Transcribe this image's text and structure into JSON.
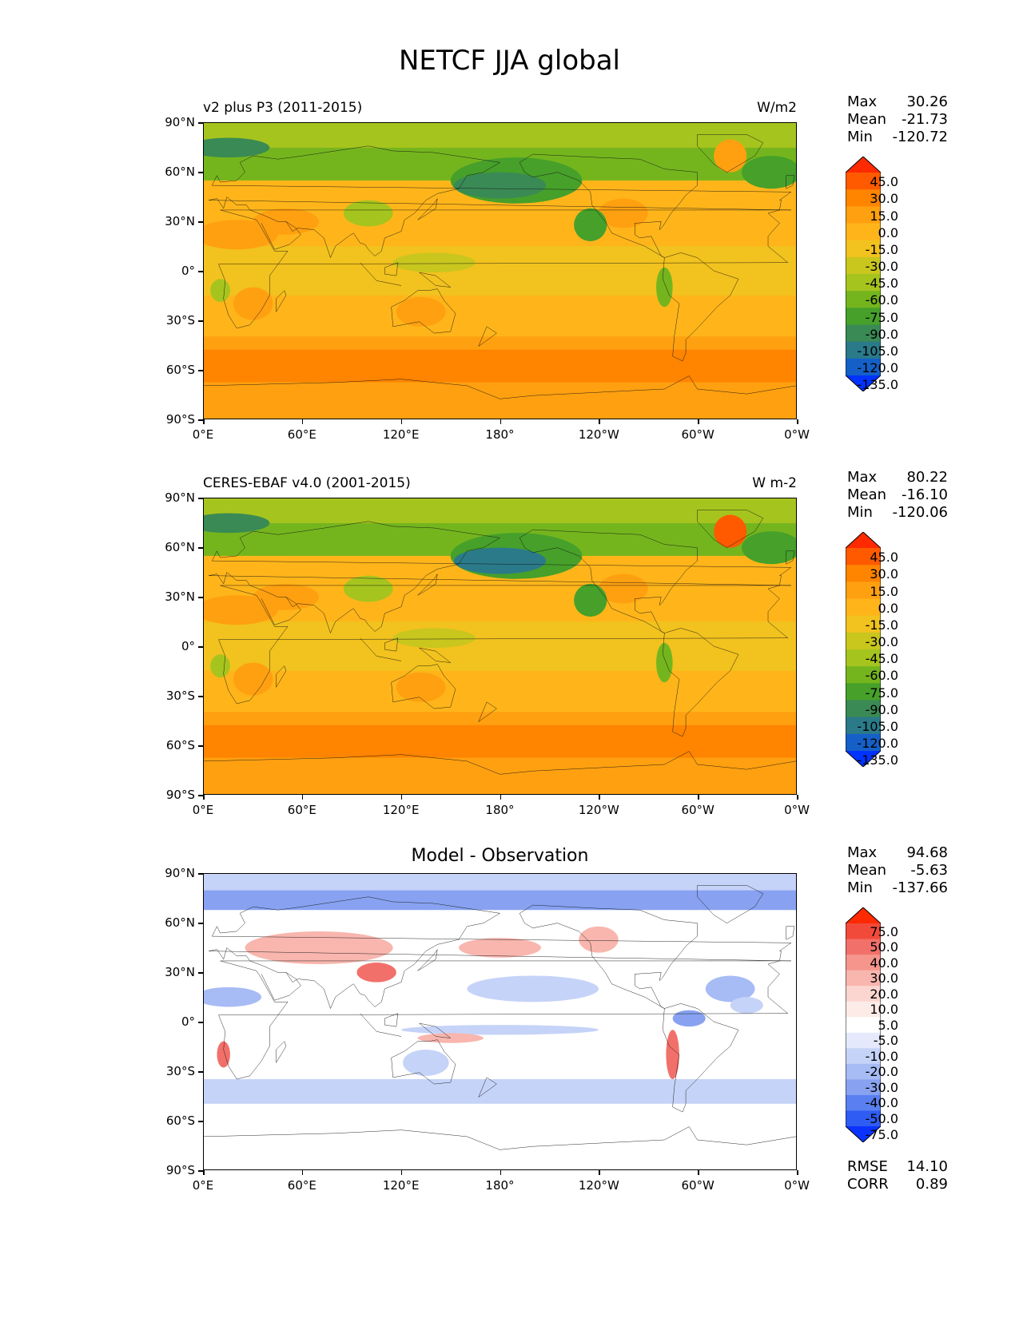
{
  "page_title": "NETCF JJA global",
  "lat_ticks": [
    "90°N",
    "60°N",
    "30°N",
    "0°",
    "30°S",
    "60°S",
    "90°S"
  ],
  "lon_ticks": [
    "0°E",
    "60°E",
    "120°E",
    "180°",
    "120°W",
    "60°W",
    "0°W"
  ],
  "panels": [
    {
      "left_title": "v2 plus P3 (2011-2015)",
      "right_title": "W/m2",
      "center_title": "",
      "stats": {
        "max_label": "Max",
        "max": "30.26",
        "mean_label": "Mean",
        "mean": "-21.73",
        "min_label": "Min",
        "min": "-120.72"
      },
      "colorbar": {
        "labels": [
          "45.0",
          "30.0",
          "15.0",
          "0.0",
          "-15.0",
          "-30.0",
          "-45.0",
          "-60.0",
          "-75.0",
          "-90.0",
          "-105.0",
          "-120.0",
          "-135.0"
        ],
        "colors": [
          "#ff2a00",
          "#ff5a00",
          "#ff8400",
          "#ffa010",
          "#ffb51a",
          "#f2c21e",
          "#c9c61e",
          "#a6c41e",
          "#74b51e",
          "#46a02a",
          "#3a8a55",
          "#2a7a8a",
          "#1560c8",
          "#0033ff"
        ]
      }
    },
    {
      "left_title": "CERES-EBAF v4.0 (2001-2015)",
      "right_title": "W m-2",
      "center_title": "",
      "stats": {
        "max_label": "Max",
        "max": "80.22",
        "mean_label": "Mean",
        "mean": "-16.10",
        "min_label": "Min",
        "min": "-120.06"
      },
      "colorbar": {
        "labels": [
          "45.0",
          "30.0",
          "15.0",
          "0.0",
          "-15.0",
          "-30.0",
          "-45.0",
          "-60.0",
          "-75.0",
          "-90.0",
          "-105.0",
          "-120.0",
          "-135.0"
        ],
        "colors": [
          "#ff2a00",
          "#ff5a00",
          "#ff8400",
          "#ffa010",
          "#ffb51a",
          "#f2c21e",
          "#c9c61e",
          "#a6c41e",
          "#74b51e",
          "#46a02a",
          "#3a8a55",
          "#2a7a8a",
          "#1560c8",
          "#0033ff"
        ]
      }
    },
    {
      "left_title": "",
      "right_title": "",
      "center_title": "Model - Observation",
      "stats": {
        "max_label": "Max",
        "max": "94.68",
        "mean_label": "Mean",
        "mean": "-5.63",
        "min_label": "Min",
        "min": "-137.66"
      },
      "colorbar": {
        "labels": [
          "75.0",
          "50.0",
          "40.0",
          "30.0",
          "20.0",
          "10.0",
          "5.0",
          "-5.0",
          "-10.0",
          "-20.0",
          "-30.0",
          "-40.0",
          "-50.0",
          "-75.0"
        ],
        "colors": [
          "#ff2a00",
          "#f24a3a",
          "#f2706a",
          "#f5958c",
          "#f8b6ae",
          "#fbd5d0",
          "#fdebe8",
          "#ffffff",
          "#e4eafb",
          "#c6d3f8",
          "#a7bbf5",
          "#88a2f1",
          "#5a7ff0",
          "#2f5cf2",
          "#0a33ff"
        ]
      },
      "rmse": {
        "rmse_label": "RMSE",
        "rmse": "14.10",
        "corr_label": "CORR",
        "corr": "0.89"
      }
    }
  ]
}
